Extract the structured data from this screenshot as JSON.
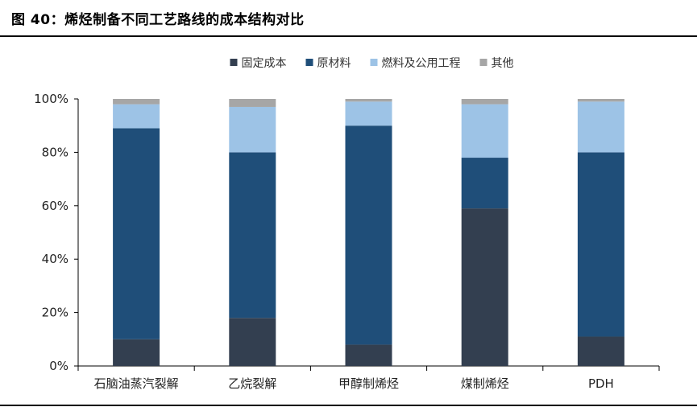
{
  "header": {
    "title": "图 40：烯烃制备不同工艺路线的成本结构对比"
  },
  "chart_data": {
    "type": "bar",
    "stacked": true,
    "categories": [
      "石脑油蒸汽裂解",
      "乙烷裂解",
      "甲醇制烯烃",
      "煤制烯烃",
      "PDH"
    ],
    "series": [
      {
        "name": "固定成本",
        "color": "#333f50",
        "values": [
          10,
          18,
          8,
          59,
          11
        ]
      },
      {
        "name": "原材料",
        "color": "#1f4e79",
        "values": [
          79,
          62,
          82,
          19,
          69
        ]
      },
      {
        "name": "燃料及公用工程",
        "color": "#9dc3e6",
        "values": [
          9,
          17,
          9,
          20,
          19
        ]
      },
      {
        "name": "其他",
        "color": "#a6a6a6",
        "values": [
          2,
          3,
          1,
          2,
          1
        ]
      }
    ],
    "y_ticks": [
      "0%",
      "20%",
      "40%",
      "60%",
      "80%",
      "100%"
    ],
    "ylim": [
      0,
      100
    ],
    "legend_position": "top",
    "grid": false
  }
}
